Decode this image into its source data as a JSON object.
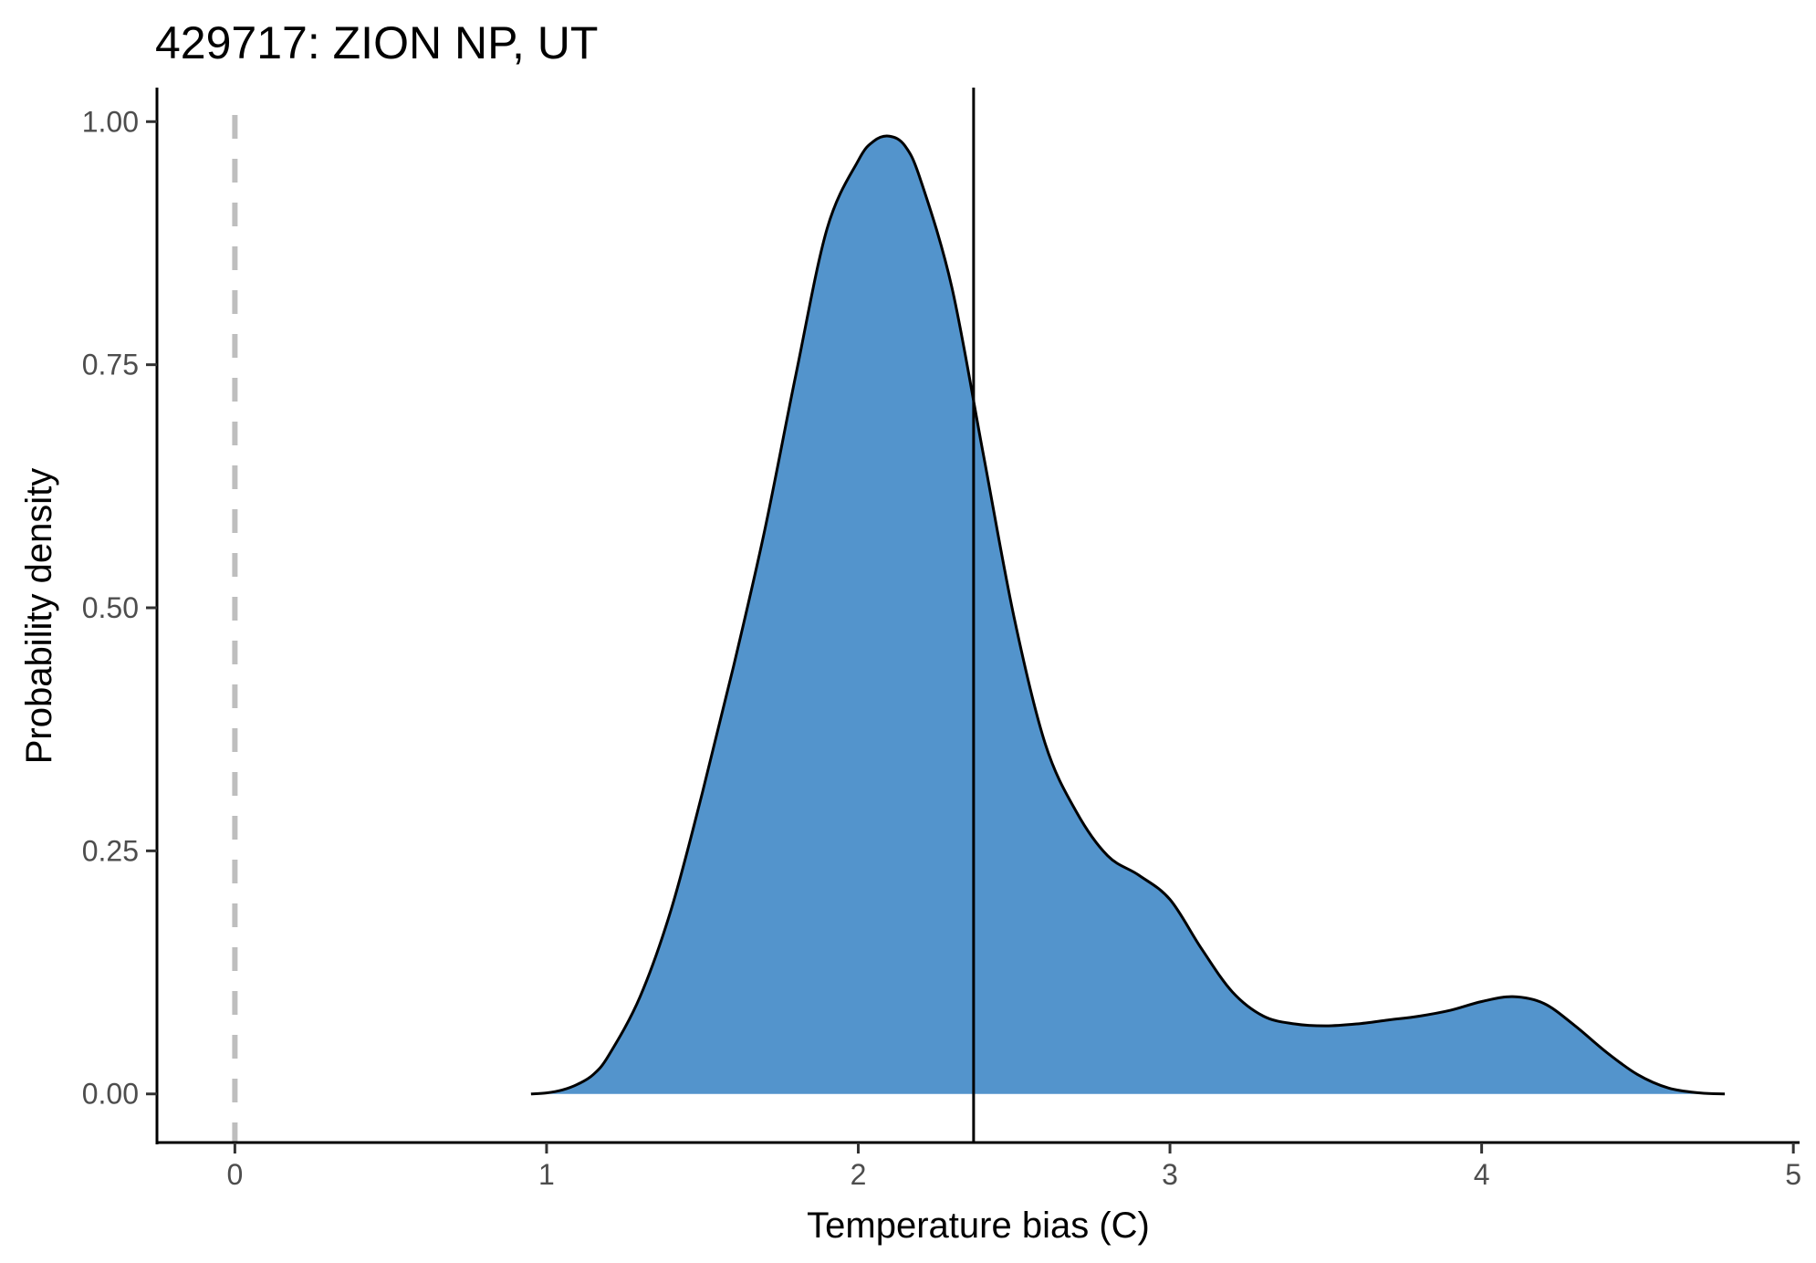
{
  "chart_data": {
    "type": "area",
    "title": "429717: ZION NP, UT",
    "xlabel": "Temperature bias (C)",
    "ylabel": "Probability density",
    "xlim": [
      -0.25,
      5.02
    ],
    "ylim": [
      -0.05,
      1.035
    ],
    "x_ticks": [
      0,
      1,
      2,
      3,
      4,
      5
    ],
    "x_tick_labels": [
      "0",
      "1",
      "2",
      "3",
      "4",
      "5"
    ],
    "y_ticks": [
      0,
      0.25,
      0.5,
      0.75,
      1.0
    ],
    "y_tick_labels": [
      "0.00",
      "0.25",
      "0.50",
      "0.75",
      "1.00"
    ],
    "grid": false,
    "fill_color": "#5394CC",
    "reference_line": {
      "x": 0,
      "style": "dashed",
      "color": "#BEBEBE"
    },
    "marker_line": {
      "x": 2.37,
      "style": "solid",
      "color": "#000000"
    },
    "series": [
      {
        "x": [
          0.95,
          1.0,
          1.05,
          1.1,
          1.15,
          1.2,
          1.3,
          1.4,
          1.5,
          1.6,
          1.7,
          1.8,
          1.9,
          2.0,
          2.05,
          2.1,
          2.15,
          2.2,
          2.3,
          2.4,
          2.5,
          2.6,
          2.7,
          2.8,
          2.9,
          3.0,
          3.1,
          3.2,
          3.3,
          3.4,
          3.5,
          3.6,
          3.7,
          3.8,
          3.9,
          4.0,
          4.1,
          4.2,
          4.3,
          4.4,
          4.5,
          4.6,
          4.7,
          4.78
        ],
        "y": [
          0.0,
          0.001,
          0.004,
          0.01,
          0.02,
          0.04,
          0.1,
          0.19,
          0.31,
          0.44,
          0.58,
          0.74,
          0.89,
          0.96,
          0.98,
          0.985,
          0.975,
          0.94,
          0.83,
          0.66,
          0.49,
          0.36,
          0.29,
          0.245,
          0.225,
          0.2,
          0.15,
          0.105,
          0.08,
          0.072,
          0.07,
          0.072,
          0.076,
          0.08,
          0.086,
          0.095,
          0.1,
          0.093,
          0.07,
          0.043,
          0.02,
          0.006,
          0.001,
          0.0
        ]
      }
    ]
  }
}
